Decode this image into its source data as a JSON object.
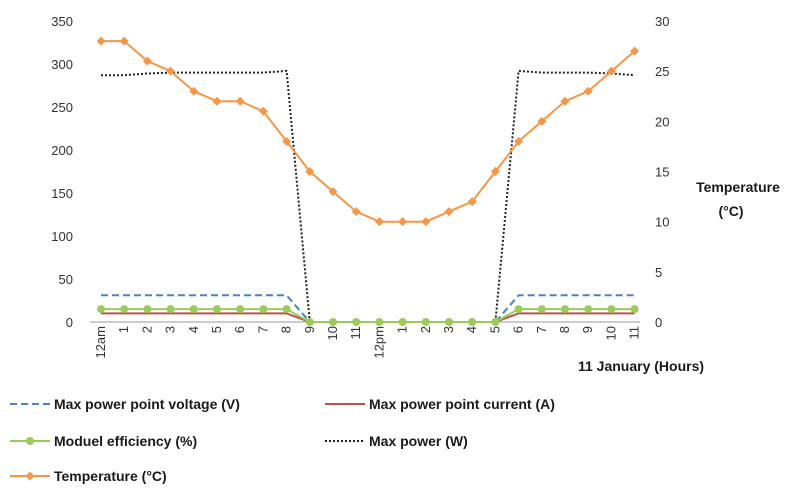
{
  "chart_data": {
    "type": "line",
    "title": "",
    "xlabel": "11 January (Hours)",
    "ylabel": "",
    "y2label_lines": [
      "Temperature",
      "(°C)"
    ],
    "categories": [
      "12am",
      "1",
      "2",
      "3",
      "4",
      "5",
      "6",
      "7",
      "8",
      "9",
      "10",
      "11",
      "12pm",
      "1",
      "2",
      "3",
      "4",
      "5",
      "6",
      "7",
      "8",
      "9",
      "10",
      "11"
    ],
    "ylim": [
      0,
      350
    ],
    "yticks": [
      0,
      50,
      100,
      150,
      200,
      250,
      300,
      350
    ],
    "y2lim": [
      0,
      30
    ],
    "y2ticks": [
      0,
      5,
      10,
      15,
      20,
      25,
      30
    ],
    "grid": false,
    "legend_position": "bottom",
    "series": [
      {
        "name": "Max power point voltage (V)",
        "axis": "left",
        "color": "#4F81BD",
        "style": "dashed",
        "marker": "none",
        "values": [
          31,
          31,
          31,
          31,
          31,
          31,
          31,
          31,
          31,
          0,
          0,
          0,
          0,
          0,
          0,
          0,
          0,
          0,
          31,
          31,
          31,
          31,
          31,
          31
        ]
      },
      {
        "name": "Max power point current (A)",
        "axis": "left",
        "color": "#C0504D",
        "style": "solid",
        "marker": "none",
        "values": [
          10,
          10,
          10,
          10,
          10,
          10,
          10,
          10,
          10,
          0,
          0,
          0,
          0,
          0,
          0,
          0,
          0,
          0,
          10,
          10,
          10,
          10,
          10,
          10
        ]
      },
      {
        "name": "Moduel efficiency (%)",
        "axis": "left",
        "color": "#9BCB5A",
        "style": "solid",
        "marker": "circle",
        "values": [
          15,
          15,
          15,
          15,
          15,
          15,
          15,
          15,
          15,
          0,
          0,
          0,
          0,
          0,
          0,
          0,
          0,
          0,
          15,
          15,
          15,
          15,
          15,
          15
        ]
      },
      {
        "name": "Max power (W)",
        "axis": "left",
        "color": "#222222",
        "style": "dotted",
        "marker": "none",
        "values": [
          287,
          287,
          289,
          290,
          290,
          290,
          290,
          290,
          292,
          0,
          0,
          0,
          0,
          0,
          0,
          0,
          0,
          0,
          292,
          290,
          290,
          290,
          289,
          287
        ]
      },
      {
        "name": "Temperature (°C)",
        "axis": "right",
        "color": "#F79646",
        "style": "solid",
        "marker": "diamond",
        "values": [
          28,
          28,
          26,
          25,
          23,
          22,
          22,
          21,
          18,
          15,
          13,
          11,
          10,
          10,
          10,
          11,
          12,
          15,
          18,
          20,
          22,
          23,
          25,
          27
        ]
      }
    ],
    "legend_rows": [
      [
        0,
        1
      ],
      [
        2,
        3
      ],
      [
        4
      ]
    ]
  }
}
